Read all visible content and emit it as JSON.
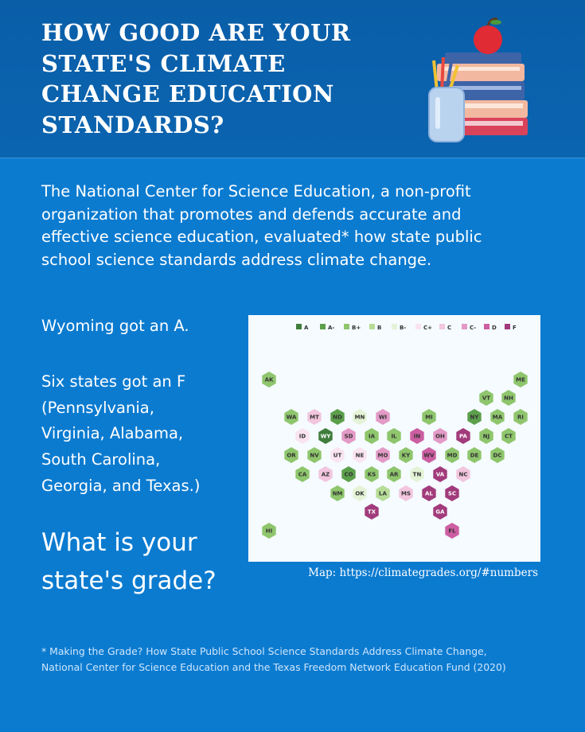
{
  "header": {
    "title": [
      "HOW GOOD ARE YOUR",
      "STATE'S CLIMATE",
      "CHANGE EDUCATION",
      "STANDARDS?"
    ]
  },
  "intro": [
    "The National Center for Science Education, a non-profit",
    "organization that promotes and defends accurate and",
    "effective science education, evaluated* how state public",
    "school science standards address climate change."
  ],
  "highlight_a": "Wyoming got an A.",
  "highlight_f": [
    "Six states got an F",
    "(Pennsylvania,",
    "Virginia, Alabama,",
    "South Carolina,",
    "Georgia, and Texas.)"
  ],
  "question": [
    "What is your",
    "state's grade?"
  ],
  "map": {
    "legend": [
      {
        "label": "A",
        "color": "#3f7d3c"
      },
      {
        "label": "A-",
        "color": "#5c9f4b"
      },
      {
        "label": "B+",
        "color": "#8fc66d"
      },
      {
        "label": "B",
        "color": "#b7dc98"
      },
      {
        "label": "B-",
        "color": "#e4f3d6"
      },
      {
        "label": "C+",
        "color": "#fae4f0"
      },
      {
        "label": "C",
        "color": "#f2c6de"
      },
      {
        "label": "C-",
        "color": "#e39ac6"
      },
      {
        "label": "D",
        "color": "#cc5ea1"
      },
      {
        "label": "F",
        "color": "#a23b7b"
      }
    ],
    "states": [
      {
        "label": "AK",
        "color": "#8fc66d"
      },
      {
        "label": "ME",
        "color": "#8fc66d"
      },
      {
        "label": "VT",
        "color": "#8fc66d"
      },
      {
        "label": "NH",
        "color": "#8fc66d"
      },
      {
        "label": "WA",
        "color": "#8fc66d"
      },
      {
        "label": "MT",
        "color": "#f2c6de"
      },
      {
        "label": "ND",
        "color": "#5c9f4b"
      },
      {
        "label": "MN",
        "color": "#e4f3d6"
      },
      {
        "label": "WI",
        "color": "#e39ac6"
      },
      {
        "label": "MI",
        "color": "#8fc66d"
      },
      {
        "label": "NY",
        "color": "#5c9f4b"
      },
      {
        "label": "MA",
        "color": "#8fc66d"
      },
      {
        "label": "RI",
        "color": "#8fc66d"
      },
      {
        "label": "ID",
        "color": "#fae4f0"
      },
      {
        "label": "WY",
        "color": "#3f7d3c"
      },
      {
        "label": "SD",
        "color": "#e39ac6"
      },
      {
        "label": "IA",
        "color": "#8fc66d"
      },
      {
        "label": "IL",
        "color": "#8fc66d"
      },
      {
        "label": "IN",
        "color": "#cc5ea1"
      },
      {
        "label": "OH",
        "color": "#e39ac6"
      },
      {
        "label": "PA",
        "color": "#a23b7b"
      },
      {
        "label": "NJ",
        "color": "#8fc66d"
      },
      {
        "label": "CT",
        "color": "#8fc66d"
      },
      {
        "label": "OR",
        "color": "#8fc66d"
      },
      {
        "label": "NV",
        "color": "#8fc66d"
      },
      {
        "label": "UT",
        "color": "#fae4f0"
      },
      {
        "label": "NE",
        "color": "#fae4f0"
      },
      {
        "label": "MO",
        "color": "#e39ac6"
      },
      {
        "label": "KY",
        "color": "#8fc66d"
      },
      {
        "label": "WV",
        "color": "#cc5ea1"
      },
      {
        "label": "MD",
        "color": "#8fc66d"
      },
      {
        "label": "DE",
        "color": "#8fc66d"
      },
      {
        "label": "DC",
        "color": "#8fc66d"
      },
      {
        "label": "CA",
        "color": "#8fc66d"
      },
      {
        "label": "AZ",
        "color": "#f2c6de"
      },
      {
        "label": "CO",
        "color": "#5c9f4b"
      },
      {
        "label": "KS",
        "color": "#8fc66d"
      },
      {
        "label": "AR",
        "color": "#8fc66d"
      },
      {
        "label": "TN",
        "color": "#e4f3d6"
      },
      {
        "label": "VA",
        "color": "#a23b7b"
      },
      {
        "label": "NC",
        "color": "#f2c6de"
      },
      {
        "label": "NM",
        "color": "#8fc66d"
      },
      {
        "label": "OK",
        "color": "#e4f3d6"
      },
      {
        "label": "LA",
        "color": "#b7dc98"
      },
      {
        "label": "MS",
        "color": "#f2c6de"
      },
      {
        "label": "AL",
        "color": "#a23b7b"
      },
      {
        "label": "SC",
        "color": "#a23b7b"
      },
      {
        "label": "TX",
        "color": "#a23b7b"
      },
      {
        "label": "GA",
        "color": "#a23b7b"
      },
      {
        "label": "HI",
        "color": "#8fc66d"
      },
      {
        "label": "FL",
        "color": "#cc5ea1"
      }
    ]
  },
  "caption": "Map: https://climategrades.org/#numbers",
  "footnote": [
    "* Making the Grade? How State Public School Science Standards Address Climate Change,",
    "National Center for Science Education and the Texas Freedom Network Education Fund (2020)"
  ]
}
